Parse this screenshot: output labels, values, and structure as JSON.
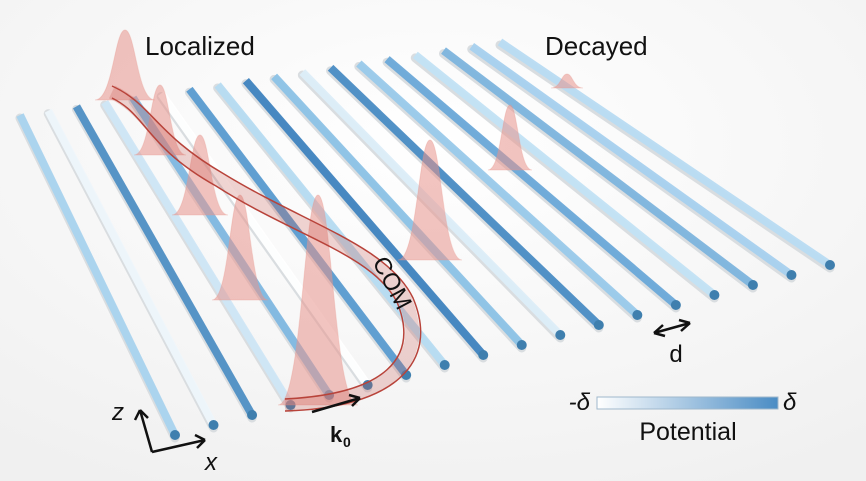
{
  "labels": {
    "localized": "Localized",
    "decayed": "Decayed",
    "com": "COM",
    "spacing": "d",
    "wavevector": "k",
    "wavevector_subscript": "0",
    "axis_z": "z",
    "axis_x": "x"
  },
  "colorbar": {
    "min_label": "-δ",
    "max_label": "δ",
    "title": "Potential"
  }
}
